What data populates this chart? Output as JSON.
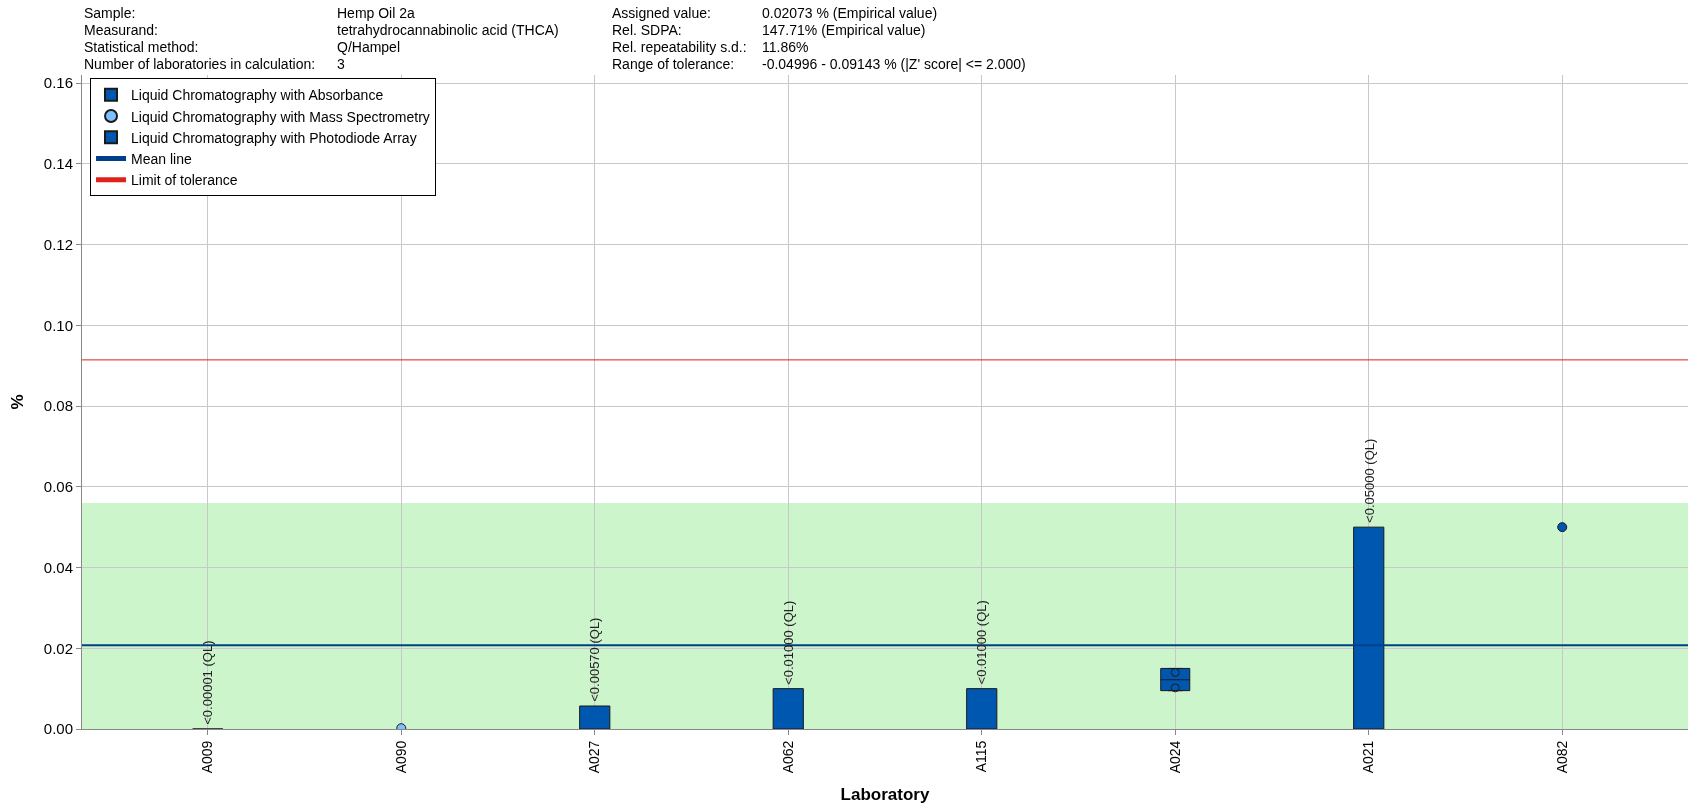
{
  "chart_data": {
    "type": "bar",
    "xlabel": "Laboratory",
    "ylabel": "%",
    "annotations": [
      "Sample:",
      "Hemp Oil 2a",
      "Assigned value:",
      "0.02073 % (Empirical value)",
      "Measurand:",
      "tetrahydrocannabinolic acid (THCA)",
      "Rel. SDPA:",
      "147.71% (Empirical value)",
      "Statistical method:",
      "Q/Hampel",
      "Rel. repeatability s.d.:",
      "11.86%",
      "Number of laboratories in calculation:",
      "3",
      "Range of tolerance:",
      "-0.04996 - 0.09143 % (|Z' score| <= 2.000)"
    ],
    "categories": [
      "A009",
      "A090",
      "A027",
      "A062",
      "A115",
      "A024",
      "A021",
      "A082"
    ],
    "series": [
      {
        "name": "Liquid Chromatography with Absorbance",
        "color": "#0057b0",
        "values": [
          1e-05,
          null,
          0.0057,
          0.01,
          0.01,
          null,
          0.05,
          null
        ],
        "value_labels": [
          "<0.00001 (QL)",
          null,
          "<0.00570 (QL)",
          "<0.01000 (QL)",
          "<0.01000 (QL)",
          null,
          "<0.05000 (QL)",
          null
        ]
      },
      {
        "name": "Liquid Chromatography with Mass Spectrometry",
        "type": "scatter",
        "color": "#80bfff",
        "values": [
          null,
          0.0002,
          null,
          null,
          null,
          null,
          null,
          null
        ]
      },
      {
        "name": "Liquid Chromatography with Photodiode Array",
        "type": "box",
        "color": "#0057b0",
        "boxes": [
          null,
          null,
          null,
          null,
          null,
          {
            "low": 0.0095,
            "q1": 0.0095,
            "median": 0.0122,
            "q3": 0.015,
            "high": 0.015,
            "outliers": [
              0.0102,
              0.014
            ]
          },
          null,
          null
        ]
      },
      {
        "type": "scatter",
        "color": "#0057b0",
        "values": [
          null,
          null,
          null,
          null,
          null,
          null,
          null,
          0.05
        ]
      }
    ],
    "ref_lines": [
      {
        "axis": "y",
        "value": 0.02073,
        "label": "Mean line",
        "color": "#003f8a"
      },
      {
        "axis": "y",
        "value": 0.09143,
        "label": "Limit of tolerance",
        "color": "#e0201a"
      }
    ],
    "bands": [
      {
        "axis": "y",
        "from": 0,
        "to": 0.056,
        "color": "#ccf5cc"
      }
    ],
    "ylim": [
      0,
      0.162
    ],
    "yticks": [
      {
        "value": 0,
        "label": "0.00"
      },
      0.02,
      0.04,
      0.06,
      0.08,
      {
        "value": 0.1,
        "label": "0.10"
      },
      0.12,
      0.14,
      0.16
    ],
    "grid": true,
    "legend": "top left",
    "marker": "circle"
  }
}
